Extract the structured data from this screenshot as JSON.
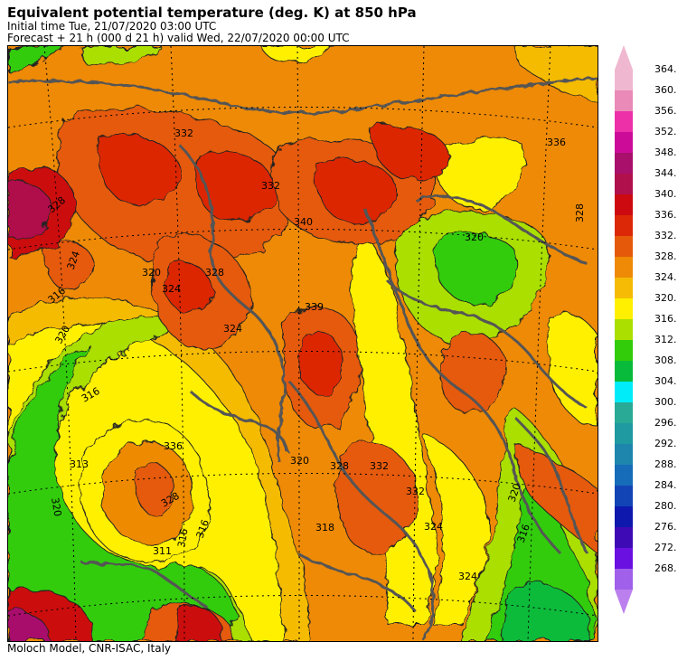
{
  "header": {
    "title": "Equivalent potential temperature (deg. K) at 850 hPa",
    "initial_time": "Initial time  Tue, 21/07/2020  03:00 UTC",
    "forecast": "Forecast  +  21 h  (000 d 21 h)  valid Wed, 22/07/2020 00:00 UTC"
  },
  "footer": {
    "credit": "Moloch Model, CNR-ISAC, Italy"
  },
  "legend": {
    "levels": [
      {
        "value": "364.",
        "color": "#f0b8d0"
      },
      {
        "value": "360.",
        "color": "#e98ab8"
      },
      {
        "value": "356.",
        "color": "#ee30a8"
      },
      {
        "value": "352.",
        "color": "#cc0c98"
      },
      {
        "value": "348.",
        "color": "#a8106c"
      },
      {
        "value": "344.",
        "color": "#b0104c"
      },
      {
        "value": "340.",
        "color": "#cc0a10"
      },
      {
        "value": "336.",
        "color": "#dc2806"
      },
      {
        "value": "332.",
        "color": "#e55a0a"
      },
      {
        "value": "328.",
        "color": "#ee8a06"
      },
      {
        "value": "324.",
        "color": "#f5bb05"
      },
      {
        "value": "320.",
        "color": "#fff000"
      },
      {
        "value": "316.",
        "color": "#aadf00"
      },
      {
        "value": "312.",
        "color": "#33cc0a"
      },
      {
        "value": "308.",
        "color": "#08bb3a"
      },
      {
        "value": "304.",
        "color": "#00ecf8"
      },
      {
        "value": "300.",
        "color": "#28aa96"
      },
      {
        "value": "296.",
        "color": "#1e9aa0"
      },
      {
        "value": "292.",
        "color": "#1e86ad"
      },
      {
        "value": "288.",
        "color": "#166cb8"
      },
      {
        "value": "284.",
        "color": "#1244b5"
      },
      {
        "value": "280.",
        "color": "#0e18ad"
      },
      {
        "value": "276.",
        "color": "#3e0ab5"
      },
      {
        "value": "272.",
        "color": "#6a10e0"
      },
      {
        "value": "268.",
        "color": "#a060ea"
      }
    ],
    "arrow_top_color": "#f0b8d0",
    "arrow_bottom_color": "#bb80ee"
  },
  "map_labels": [
    {
      "text": "316"
    },
    {
      "text": "320"
    },
    {
      "text": "324"
    },
    {
      "text": "328"
    },
    {
      "text": "324"
    },
    {
      "text": "320"
    },
    {
      "text": "316"
    },
    {
      "text": "313"
    },
    {
      "text": "320"
    },
    {
      "text": "316"
    },
    {
      "text": "311"
    },
    {
      "text": "328"
    },
    {
      "text": "336"
    },
    {
      "text": "339"
    },
    {
      "text": "332"
    },
    {
      "text": "328"
    },
    {
      "text": "324"
    },
    {
      "text": "318"
    },
    {
      "text": "332"
    },
    {
      "text": "320"
    },
    {
      "text": "316"
    },
    {
      "text": "324"
    },
    {
      "text": "320"
    },
    {
      "text": "328"
    },
    {
      "text": "332"
    },
    {
      "text": "336"
    },
    {
      "text": "340"
    },
    {
      "text": "328"
    },
    {
      "text": "320"
    },
    {
      "text": "324"
    },
    {
      "text": "316"
    },
    {
      "text": "332"
    }
  ]
}
